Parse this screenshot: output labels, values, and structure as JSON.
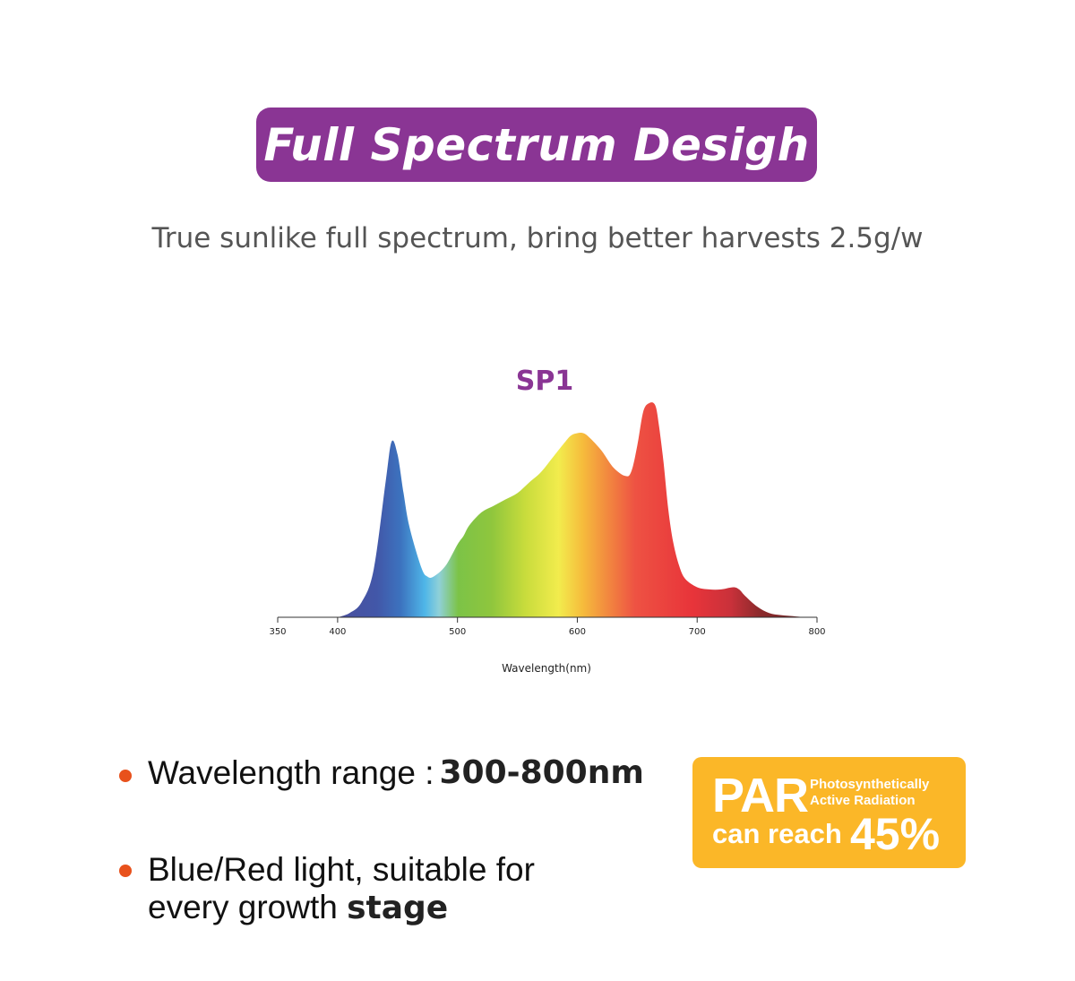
{
  "header": {
    "title": "Full Spectrum Desigh",
    "subtitle": "True sunlike full spectrum, bring better harvests 2.5g/w"
  },
  "colors": {
    "banner": "#8a3594",
    "chart_title": "#8a3594",
    "par_badge": "#fbb728",
    "bullet_dot": "#e8511c"
  },
  "chart_data": {
    "type": "area",
    "title": "SP1",
    "xlabel": "Wavelength(nm)",
    "ylabel": "",
    "xlim": [
      350,
      800
    ],
    "ylim": [
      0,
      1
    ],
    "xticks": [
      350,
      400,
      500,
      600,
      700,
      800
    ],
    "grid": false,
    "legend": "none",
    "fill": "rainbow spectrum gradient",
    "series": [
      {
        "x": [
          400,
          410,
          420,
          430,
          440,
          445,
          450,
          455,
          460,
          470,
          475,
          480,
          490,
          500,
          505,
          510,
          520,
          530,
          540,
          550,
          560,
          570,
          580,
          590,
          595,
          600,
          605,
          610,
          620,
          630,
          640,
          645,
          650,
          655,
          660,
          665,
          668,
          672,
          676,
          680,
          685,
          690,
          700,
          710,
          720,
          730,
          735,
          740,
          750,
          760,
          770,
          780,
          790
        ],
        "values": [
          0.0,
          0.02,
          0.07,
          0.22,
          0.63,
          0.82,
          0.76,
          0.58,
          0.42,
          0.23,
          0.19,
          0.19,
          0.24,
          0.34,
          0.38,
          0.43,
          0.49,
          0.52,
          0.55,
          0.58,
          0.63,
          0.68,
          0.75,
          0.82,
          0.85,
          0.86,
          0.86,
          0.84,
          0.78,
          0.7,
          0.66,
          0.68,
          0.8,
          0.96,
          1.0,
          0.99,
          0.9,
          0.72,
          0.5,
          0.35,
          0.24,
          0.18,
          0.14,
          0.13,
          0.13,
          0.14,
          0.13,
          0.1,
          0.05,
          0.02,
          0.01,
          0.005,
          0.0
        ]
      }
    ]
  },
  "bullets": {
    "b1_label": "Wavelength range :",
    "b1_value": "300-800nm",
    "b2_line1": "Blue/Red light, suitable for",
    "b2_line2": "every growth",
    "b2_line2_end": "stage"
  },
  "par": {
    "big": "PAR",
    "small_line1": "Photosynthetically",
    "small_line2": "Active Radiation",
    "reach": "can reach",
    "percent": "45%"
  }
}
